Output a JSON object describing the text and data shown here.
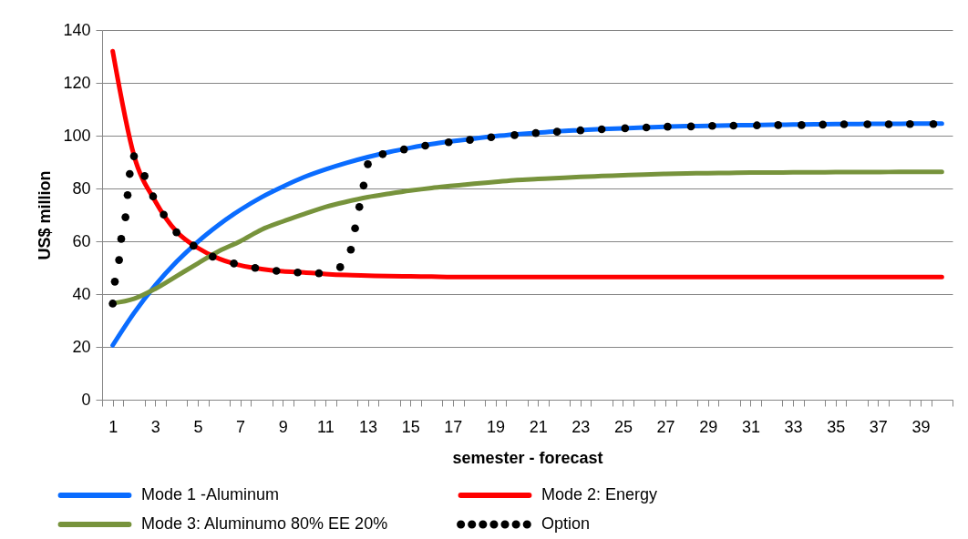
{
  "chart_data": {
    "type": "line",
    "xlabel": "semester - forecast",
    "ylabel": "US$ million",
    "x": [
      1,
      2,
      3,
      4,
      5,
      6,
      7,
      8,
      9,
      10,
      11,
      12,
      13,
      14,
      15,
      16,
      17,
      18,
      19,
      20,
      21,
      22,
      23,
      24,
      25,
      26,
      27,
      28,
      29,
      30,
      31,
      32,
      33,
      34,
      35,
      36,
      37,
      38,
      39,
      40
    ],
    "xlim": [
      0.5,
      40.5
    ],
    "xticks": [
      {
        "value": 0.5,
        "label": null
      },
      1,
      {
        "value": 1.5,
        "label": null
      },
      {
        "value": 2.5,
        "label": null
      },
      3,
      {
        "value": 3.5,
        "label": null
      },
      {
        "value": 4.5,
        "label": null
      },
      5,
      {
        "value": 5.5,
        "label": null
      },
      {
        "value": 6.5,
        "label": null
      },
      7,
      {
        "value": 7.5,
        "label": null
      },
      {
        "value": 8.5,
        "label": null
      },
      9,
      {
        "value": 9.5,
        "label": null
      },
      {
        "value": 10.5,
        "label": null
      },
      11,
      {
        "value": 11.5,
        "label": null
      },
      {
        "value": 12.5,
        "label": null
      },
      13,
      {
        "value": 13.5,
        "label": null
      },
      {
        "value": 14.5,
        "label": null
      },
      15,
      {
        "value": 15.5,
        "label": null
      },
      {
        "value": 16.5,
        "label": null
      },
      17,
      {
        "value": 17.5,
        "label": null
      },
      {
        "value": 18.5,
        "label": null
      },
      19,
      {
        "value": 19.5,
        "label": null
      },
      {
        "value": 20.5,
        "label": null
      },
      21,
      {
        "value": 21.5,
        "label": null
      },
      {
        "value": 22.5,
        "label": null
      },
      23,
      {
        "value": 23.5,
        "label": null
      },
      {
        "value": 24.5,
        "label": null
      },
      25,
      {
        "value": 25.5,
        "label": null
      },
      {
        "value": 26.5,
        "label": null
      },
      27,
      {
        "value": 27.5,
        "label": null
      },
      {
        "value": 28.5,
        "label": null
      },
      29,
      {
        "value": 29.5,
        "label": null
      },
      {
        "value": 30.5,
        "label": null
      },
      31,
      {
        "value": 31.5,
        "label": null
      },
      {
        "value": 32.5,
        "label": null
      },
      33,
      {
        "value": 33.5,
        "label": null
      },
      {
        "value": 34.5,
        "label": null
      },
      35,
      {
        "value": 35.5,
        "label": null
      },
      {
        "value": 36.5,
        "label": null
      },
      37,
      {
        "value": 37.5,
        "label": null
      },
      {
        "value": 38.5,
        "label": null
      },
      39,
      {
        "value": 39.5,
        "label": null
      },
      {
        "value": 40.5,
        "label": null
      }
    ],
    "ylim": [
      0,
      140
    ],
    "yticks": [
      0,
      20,
      40,
      60,
      80,
      100,
      120,
      140
    ],
    "grid": "y",
    "legend": "bottom",
    "line_style": "solid",
    "series": [
      {
        "name": "Mode 1 -Aluminum",
        "color": "#0a6cff",
        "values": [
          20.6,
          32.8,
          43.3,
          52.2,
          59.8,
          66.3,
          71.9,
          76.7,
          80.7,
          84.3,
          87.2,
          89.7,
          91.9,
          93.8,
          95.4,
          96.8,
          97.9,
          98.9,
          99.8,
          100.5,
          101.1,
          101.7,
          102.1,
          102.5,
          102.8,
          103.1,
          103.4,
          103.6,
          103.7,
          103.9,
          104.0,
          104.1,
          104.2,
          104.3,
          104.4,
          104.4,
          104.5,
          104.5,
          104.6,
          104.6
        ]
      },
      {
        "name": "Mode 2: Energy",
        "color": "#ff0000",
        "values": [
          132,
          92.5,
          75.2,
          63.7,
          57.5,
          53.4,
          50.9,
          49.5,
          48.6,
          48.2,
          47.6,
          47.2,
          47.0,
          46.8,
          46.7,
          46.6,
          46.5,
          46.5,
          46.5,
          46.5,
          46.5,
          46.5,
          46.5,
          46.5,
          46.5,
          46.5,
          46.5,
          46.5,
          46.5,
          46.5,
          46.5,
          46.5,
          46.5,
          46.5,
          46.5,
          46.5,
          46.5,
          46.5,
          46.5,
          46.5
        ]
      },
      {
        "name": "Mode 3: Aluminumo 80% EE 20%",
        "color": "#77933c",
        "values": [
          36.5,
          38.2,
          42,
          46.8,
          51.6,
          56.3,
          60,
          64.4,
          67.5,
          70.3,
          73,
          75,
          76.7,
          78,
          79.2,
          80.2,
          81,
          81.8,
          82.5,
          83.2,
          83.6,
          84,
          84.4,
          84.7,
          85,
          85.3,
          85.5,
          85.7,
          85.8,
          85.9,
          86,
          86,
          86.1,
          86.1,
          86.2,
          86.2,
          86.2,
          86.3,
          86.3,
          86.3
        ]
      },
      {
        "name": "Option",
        "color": "#000000",
        "type": "scatter",
        "marker": "circle",
        "x": [
          1.0,
          1.1,
          1.3,
          1.4,
          1.6,
          1.7,
          1.8,
          2.0,
          2.5,
          2.9,
          3.4,
          4.0,
          4.8,
          5.7,
          6.7,
          7.7,
          8.7,
          9.7,
          10.7,
          11.7,
          12.2,
          12.4,
          12.6,
          12.8,
          13.0,
          13.7,
          14.7,
          15.7,
          16.8,
          17.8,
          18.8,
          19.9,
          20.9,
          21.9,
          23.0,
          24.0,
          25.1,
          26.1,
          27.1,
          28.2,
          29.2,
          30.2,
          31.3,
          32.3,
          33.4,
          34.4,
          35.4,
          36.5,
          37.5,
          38.5,
          39.6
        ],
        "values": [
          36.4,
          44.7,
          52.9,
          60.9,
          69.1,
          77.5,
          85.5,
          92.2,
          84.7,
          77.0,
          70.1,
          63.4,
          58.3,
          54.2,
          51.6,
          49.9,
          48.8,
          48.2,
          47.9,
          50.2,
          56.8,
          64.9,
          73.0,
          81.1,
          89.2,
          93.0,
          94.8,
          96.2,
          97.5,
          98.4,
          99.4,
          100.2,
          101.0,
          101.5,
          102.0,
          102.4,
          102.8,
          103.1,
          103.4,
          103.5,
          103.7,
          103.8,
          103.9,
          104.0,
          104.0,
          104.2,
          104.3,
          104.3,
          104.3,
          104.4,
          104.4
        ]
      }
    ]
  }
}
